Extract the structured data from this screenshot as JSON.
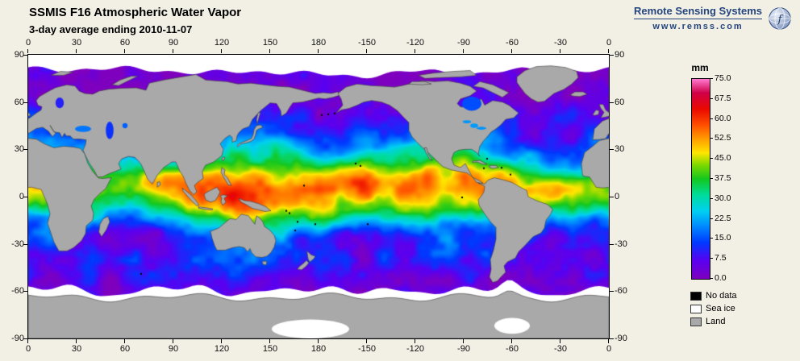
{
  "header": {
    "title": "SSMIS F16 Atmospheric Water Vapor",
    "subtitle": "3-day average ending 2010-11-07"
  },
  "branding": {
    "name": "Remote Sensing Systems",
    "url": "www.remss.com",
    "logo": "globe-icon",
    "text_color": "#24457f"
  },
  "map": {
    "lon_ticks": [
      "0",
      "30",
      "60",
      "90",
      "120",
      "150",
      "180",
      "-150",
      "-120",
      "-90",
      "-60",
      "-30",
      "0"
    ],
    "lat_ticks": [
      "90",
      "60",
      "30",
      "0",
      "-30",
      "-60",
      "-90"
    ],
    "land_color": "#a9a9a9",
    "sea_ice_color": "#ffffff",
    "no_data_color": "#000000",
    "background_color": "#f2efe4",
    "border_color": "#000000"
  },
  "colorbar": {
    "unit": "mm",
    "min": 0,
    "max": 75,
    "tick_labels": [
      "75.0",
      "67.5",
      "60.0",
      "52.5",
      "45.0",
      "37.5",
      "30.0",
      "22.5",
      "15.0",
      "7.5",
      "0.0"
    ],
    "stops": [
      [
        0,
        "#7e00be"
      ],
      [
        0.09,
        "#5a00f0"
      ],
      [
        0.18,
        "#0038ff"
      ],
      [
        0.27,
        "#0090ff"
      ],
      [
        0.34,
        "#00d0f0"
      ],
      [
        0.42,
        "#00dc9a"
      ],
      [
        0.5,
        "#14c81e"
      ],
      [
        0.57,
        "#7ed800"
      ],
      [
        0.63,
        "#ffe600"
      ],
      [
        0.7,
        "#ff9c00"
      ],
      [
        0.77,
        "#ff4e00"
      ],
      [
        0.85,
        "#ea0800"
      ],
      [
        0.93,
        "#cf0048"
      ],
      [
        1,
        "#ff7ad2"
      ]
    ]
  },
  "legend": [
    {
      "label": "No data",
      "color": "#000000"
    },
    {
      "label": "Sea ice",
      "color": "#ffffff"
    },
    {
      "label": "Land",
      "color": "#a9a9a9"
    }
  ]
}
